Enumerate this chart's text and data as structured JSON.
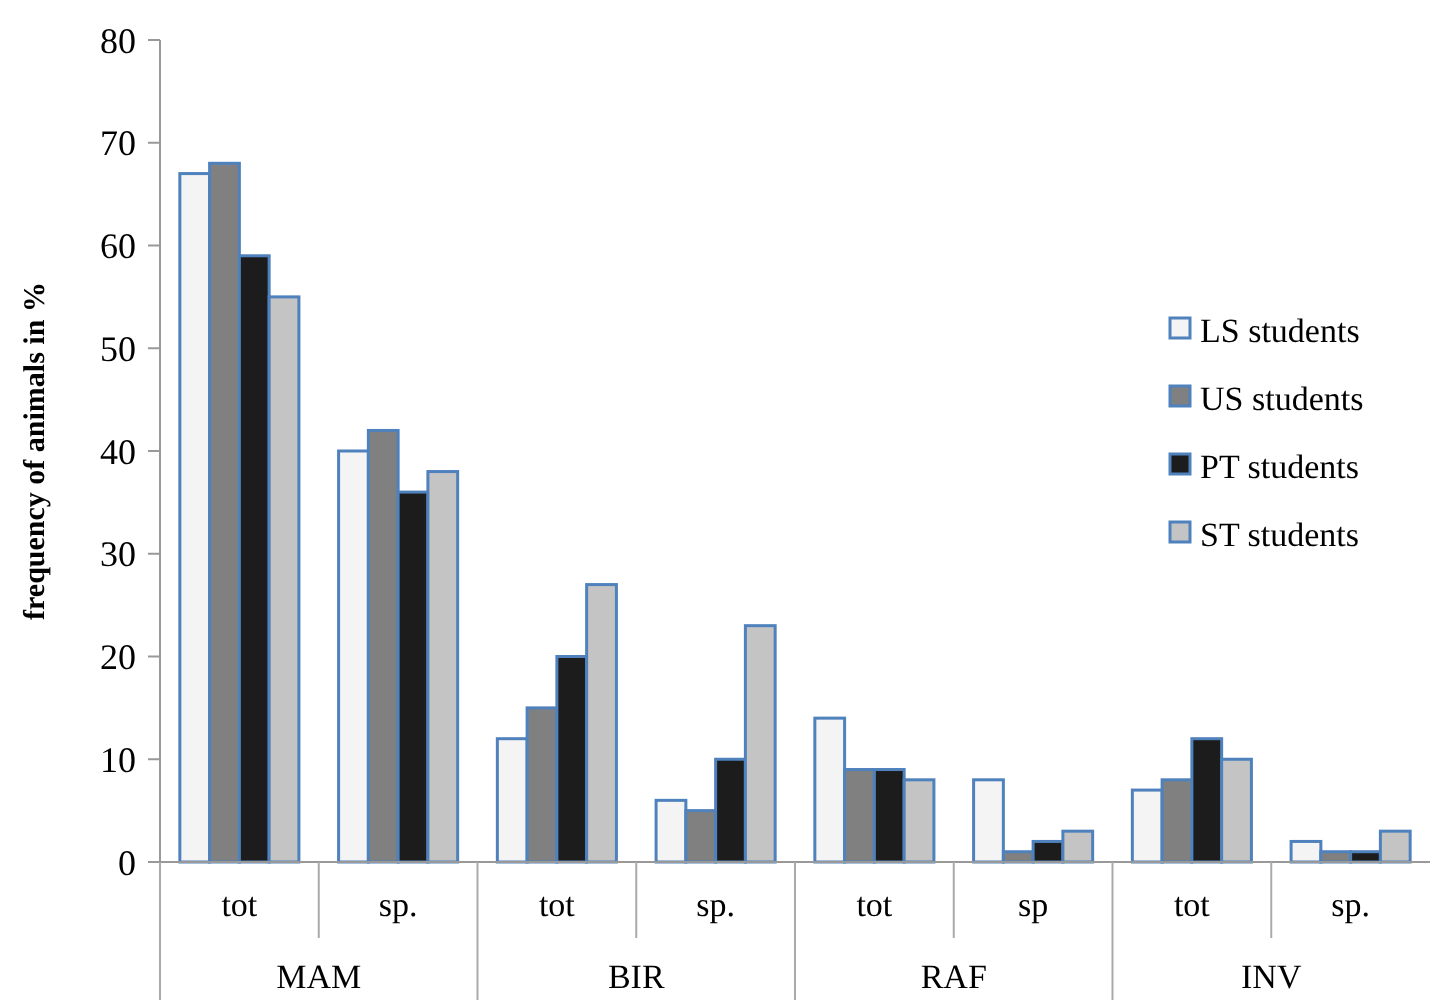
{
  "chart_data": {
    "type": "bar",
    "ylabel": "frequency of animals in %",
    "categories": [
      "tot",
      "sp.",
      "tot",
      "sp.",
      "tot",
      "sp",
      "tot",
      "sp."
    ],
    "annotations": [
      "MAM",
      "BIR",
      "RAF",
      "INV"
    ],
    "series": [
      {
        "name": "LS students",
        "color": "#f4f4f4",
        "values": [
          67,
          40,
          12,
          6,
          14,
          8,
          7,
          2
        ]
      },
      {
        "name": "US students",
        "color": "#808080",
        "values": [
          68,
          42,
          15,
          5,
          9,
          1,
          8,
          1
        ]
      },
      {
        "name": "PT students",
        "color": "#1c1c1c",
        "values": [
          59,
          36,
          20,
          10,
          9,
          2,
          12,
          1
        ]
      },
      {
        "name": "ST students",
        "color": "#c4c4c4",
        "values": [
          55,
          38,
          27,
          23,
          8,
          3,
          10,
          3
        ]
      }
    ],
    "ylim": [
      0,
      80
    ],
    "yticks": [
      0,
      10,
      20,
      30,
      40,
      50,
      60,
      70,
      80
    ],
    "grid": false,
    "legend": "right"
  }
}
